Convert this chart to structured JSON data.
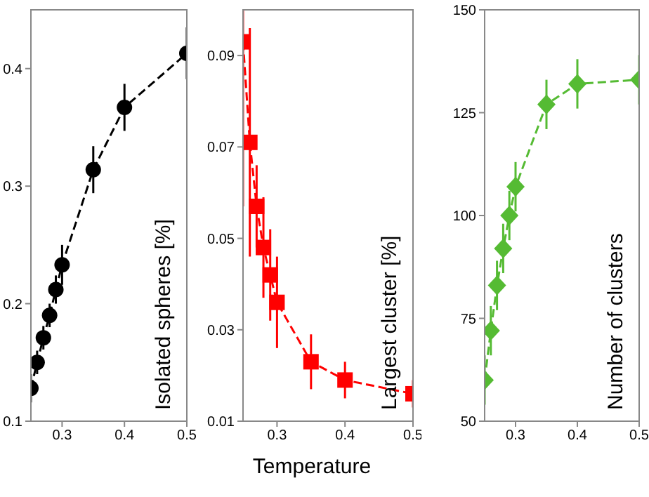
{
  "chart_data": [
    {
      "type": "line",
      "x": [
        0.25,
        0.26,
        0.27,
        0.28,
        0.29,
        0.3,
        0.35,
        0.4,
        0.5
      ],
      "values": [
        0.128,
        0.15,
        0.171,
        0.19,
        0.212,
        0.233,
        0.314,
        0.367,
        0.413
      ],
      "errors": [
        0.012,
        0.01,
        0.01,
        0.01,
        0.012,
        0.017,
        0.02,
        0.02,
        0.022
      ],
      "color": "#000000",
      "marker": "circle",
      "line_style": "dashed",
      "ylabel": "Isolated spheres [%]",
      "xlim": [
        0.25,
        0.5
      ],
      "xticks": [
        0.3,
        0.4,
        0.5
      ],
      "ylim": [
        0.1,
        0.45
      ],
      "yticks": [
        0.1,
        0.2,
        0.3,
        0.4
      ],
      "grid": false
    },
    {
      "type": "line",
      "x": [
        0.25,
        0.26,
        0.27,
        0.28,
        0.29,
        0.3,
        0.35,
        0.4,
        0.5
      ],
      "values": [
        0.093,
        0.071,
        0.057,
        0.048,
        0.042,
        0.036,
        0.023,
        0.019,
        0.016
      ],
      "errors": [
        [
          0.057,
          0.1
        ],
        0.025,
        0.009,
        0.011,
        0.01,
        0.01,
        0.006,
        0.004,
        0.003
      ],
      "color": "#ff0000",
      "marker": "square",
      "line_style": "dashed",
      "ylabel": "Largest cluster [%]",
      "xlabel": "Temperature",
      "xlim": [
        0.25,
        0.5
      ],
      "xticks": [
        0.3,
        0.4,
        0.5
      ],
      "ylim": [
        0.01,
        0.1
      ],
      "yticks": [
        0.01,
        0.03,
        0.05,
        0.07,
        0.09
      ],
      "grid": false
    },
    {
      "type": "line",
      "x": [
        0.25,
        0.26,
        0.27,
        0.28,
        0.29,
        0.3,
        0.35,
        0.4,
        0.5
      ],
      "values": [
        60,
        72,
        83,
        92,
        100,
        107,
        127,
        132,
        133
      ],
      "errors": [
        6,
        6,
        6,
        6,
        6,
        6,
        6,
        6,
        6
      ],
      "color": "#55bb33",
      "marker": "diamond",
      "line_style": "dashed",
      "ylabel": "Number of clusters",
      "xlim": [
        0.25,
        0.5
      ],
      "xticks": [
        0.3,
        0.4,
        0.5
      ],
      "ylim": [
        50,
        150
      ],
      "yticks": [
        50,
        75,
        100,
        125,
        150
      ],
      "grid": false
    }
  ]
}
